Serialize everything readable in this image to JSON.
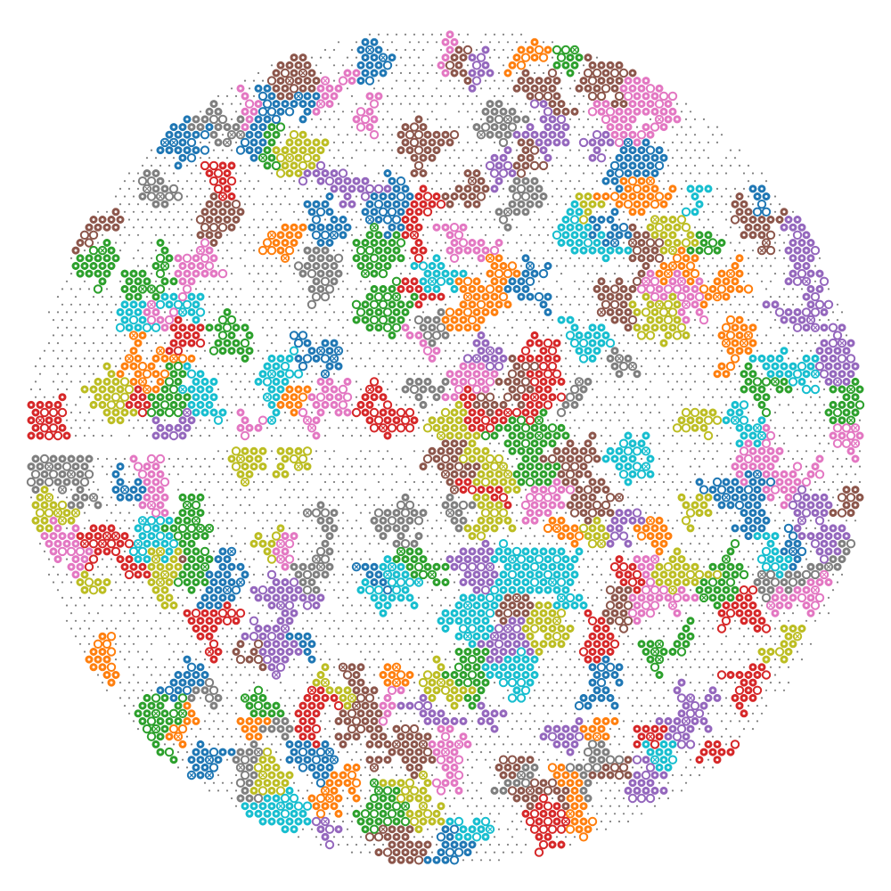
{
  "figure": {
    "kind": "honeycomb cluster pattern",
    "shape": "circular disc with a horizontal wedge-shaped slit on the left-center",
    "background": "#ffffff",
    "lattice_dot_color": "#7f7f7f",
    "palette": {
      "blue": "#1f77b4",
      "orange": "#ff7f0e",
      "green": "#2ca02c",
      "red": "#d62728",
      "purple": "#9467bd",
      "brown": "#8c564b",
      "pink": "#e377c2",
      "gray": "#7f7f7f",
      "olive": "#bcbd22",
      "cyan": "#17becf"
    },
    "marker_types": [
      "filled-ring",
      "hollow-ring",
      "crossed-ring"
    ],
    "clusters": [
      {
        "color": "green",
        "rings": 1
      },
      {
        "color": "red",
        "rings": 1
      },
      {
        "color": "blue",
        "rings": 2
      },
      {
        "color": "olive",
        "rings": 1
      },
      {
        "color": "cyan",
        "rings": 1
      },
      {
        "color": "orange",
        "rings": 1
      },
      {
        "color": "purple",
        "rings": 2
      },
      {
        "color": "brown",
        "rings": 1
      },
      {
        "color": "pink",
        "rings": 1
      },
      {
        "color": "gray",
        "rings": 2
      }
    ]
  }
}
